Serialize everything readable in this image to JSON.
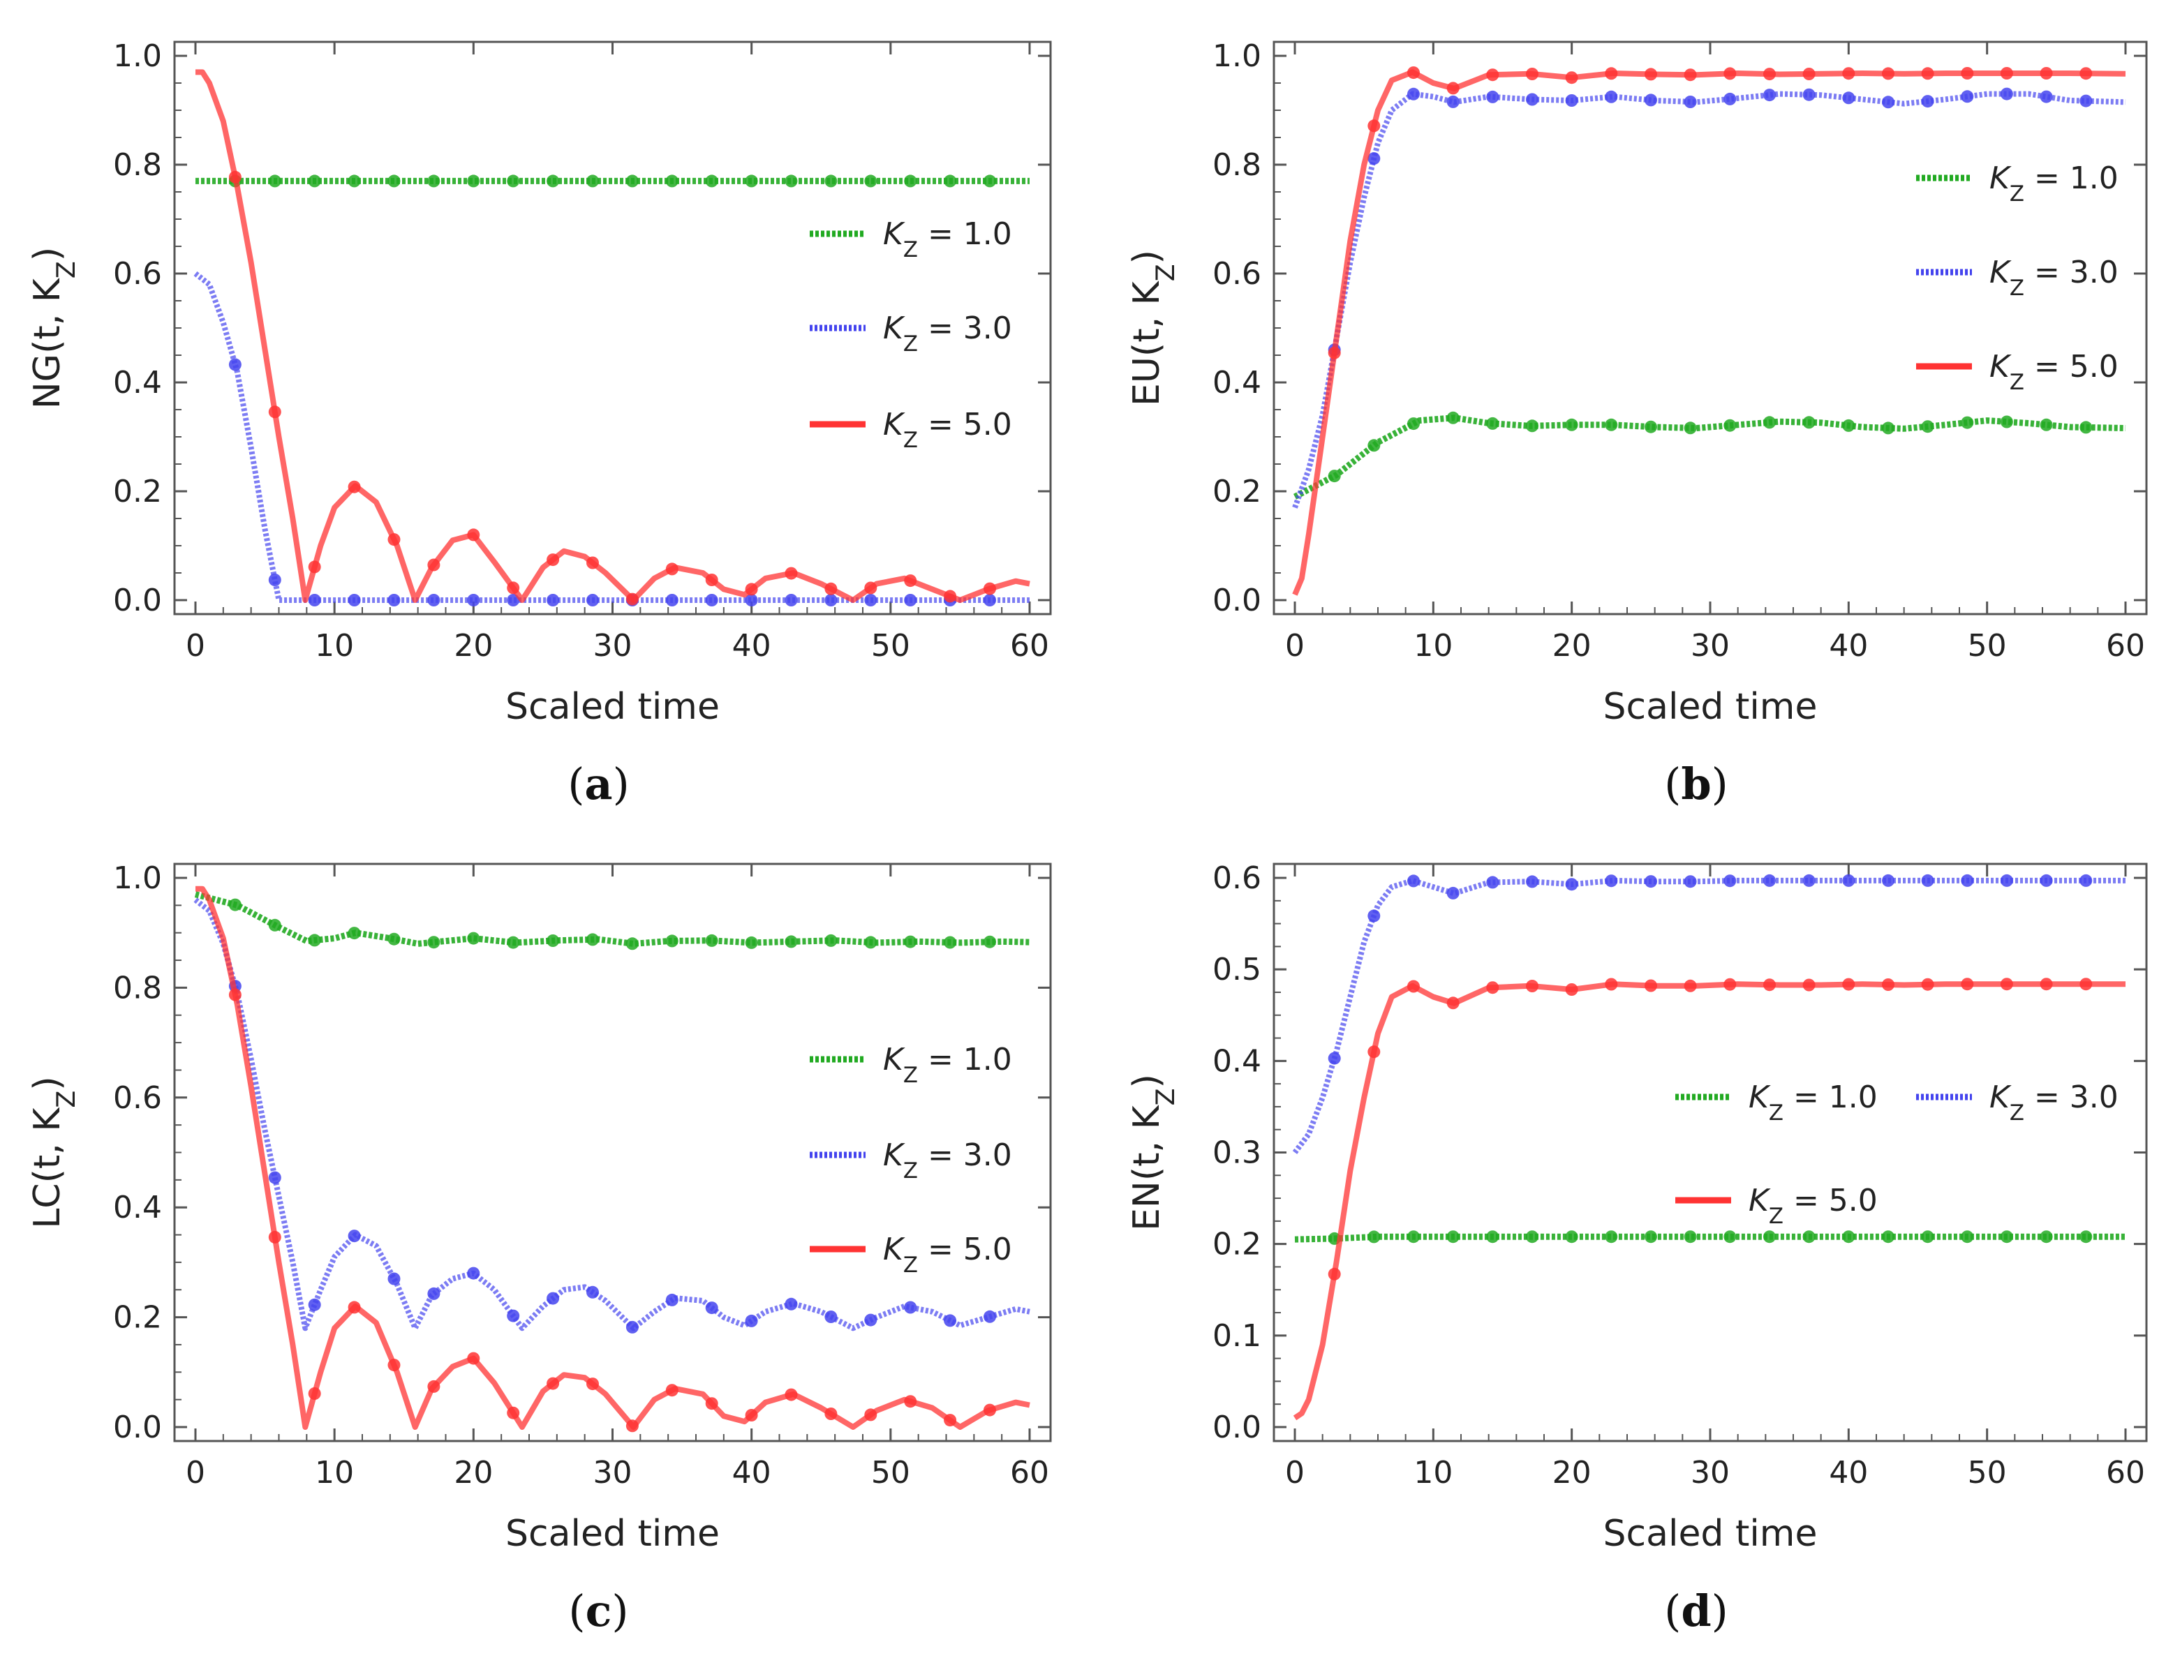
{
  "figure": {
    "xlabel": "Scaled time",
    "colors": {
      "kz1": "#22aa22",
      "kz3": "#4444ee",
      "kz5": "#ff3333",
      "frame": "#555555"
    }
  },
  "chart_data": [
    {
      "id": "a",
      "type": "line",
      "caption": "(a)",
      "xlabel": "Scaled time",
      "ylabel": "NG(t, K_Z)",
      "xlim": [
        0,
        60
      ],
      "ylim": [
        0,
        1.0
      ],
      "xticks": [
        "0",
        "10",
        "20",
        "30",
        "40",
        "50",
        "60"
      ],
      "yticks": [
        "0.0",
        "0.2",
        "0.4",
        "0.6",
        "0.8",
        "1.0"
      ],
      "legend_position": "right",
      "series": [
        {
          "name": "K_Z = 1.0",
          "key": "kz1",
          "x": [
            0,
            60
          ],
          "y": [
            0.77,
            0.77
          ]
        },
        {
          "name": "K_Z = 3.0",
          "key": "kz3",
          "x": [
            0,
            1,
            2,
            3,
            4,
            5,
            6,
            8,
            10,
            20,
            30,
            40,
            50,
            60
          ],
          "y": [
            0.6,
            0.58,
            0.51,
            0.42,
            0.28,
            0.13,
            0.0,
            0.0,
            0.0,
            0.0,
            0.0,
            0.0,
            0.0,
            0.0
          ]
        },
        {
          "name": "K_Z = 5.0",
          "key": "kz5",
          "x": [
            0,
            0.5,
            1,
            2,
            3,
            4,
            5,
            6,
            7,
            7.9,
            9,
            10,
            11.5,
            13,
            14.5,
            15.8,
            17,
            18.5,
            20,
            21.5,
            23.5,
            25,
            26.5,
            28,
            29.5,
            31.5,
            33,
            34.5,
            36.5,
            38,
            39.5,
            41,
            43,
            45,
            47.3,
            49,
            51,
            53,
            55,
            57,
            59,
            60
          ],
          "y": [
            0.97,
            0.97,
            0.95,
            0.88,
            0.76,
            0.62,
            0.46,
            0.3,
            0.15,
            0.0,
            0.1,
            0.17,
            0.21,
            0.18,
            0.1,
            0.0,
            0.06,
            0.11,
            0.12,
            0.07,
            0.0,
            0.06,
            0.09,
            0.08,
            0.05,
            0.0,
            0.04,
            0.06,
            0.05,
            0.02,
            0.01,
            0.04,
            0.05,
            0.03,
            0.0,
            0.03,
            0.04,
            0.02,
            0.0,
            0.02,
            0.035,
            0.03
          ]
        }
      ]
    },
    {
      "id": "b",
      "type": "line",
      "caption": "(b)",
      "xlabel": "Scaled time",
      "ylabel": "EU(t, K_Z)",
      "xlim": [
        0,
        60
      ],
      "ylim": [
        0,
        1.0
      ],
      "xticks": [
        "0",
        "10",
        "20",
        "30",
        "40",
        "50",
        "60"
      ],
      "yticks": [
        "0.0",
        "0.2",
        "0.4",
        "0.6",
        "0.8",
        "1.0"
      ],
      "legend_position": "right",
      "series": [
        {
          "name": "K_Z = 1.0",
          "key": "kz1",
          "x": [
            0,
            3,
            6,
            9,
            11.5,
            14,
            17,
            20,
            23,
            26,
            29,
            32,
            35,
            38,
            41,
            44,
            47,
            50,
            53,
            56,
            60
          ],
          "y": [
            0.19,
            0.23,
            0.29,
            0.33,
            0.335,
            0.325,
            0.32,
            0.322,
            0.322,
            0.318,
            0.316,
            0.322,
            0.328,
            0.326,
            0.318,
            0.315,
            0.322,
            0.33,
            0.325,
            0.318,
            0.316
          ]
        },
        {
          "name": "K_Z = 3.0",
          "key": "kz3",
          "x": [
            0,
            1,
            2,
            3,
            4,
            5,
            6,
            7,
            8.5,
            10,
            11.5,
            14,
            17,
            20,
            23,
            26,
            29,
            32,
            35,
            38,
            41,
            44,
            47,
            50,
            53,
            56,
            60
          ],
          "y": [
            0.17,
            0.24,
            0.34,
            0.48,
            0.62,
            0.74,
            0.84,
            0.9,
            0.93,
            0.925,
            0.915,
            0.925,
            0.92,
            0.918,
            0.925,
            0.918,
            0.915,
            0.922,
            0.93,
            0.928,
            0.92,
            0.912,
            0.92,
            0.93,
            0.93,
            0.918,
            0.915
          ]
        },
        {
          "name": "K_Z = 5.0",
          "key": "kz5",
          "x": [
            0,
            0.5,
            1,
            2,
            3,
            4,
            5,
            6,
            7,
            8.5,
            10,
            11.5,
            14,
            17,
            20,
            23,
            26,
            29,
            32,
            35,
            38,
            41,
            44,
            47,
            50,
            53,
            56,
            60
          ],
          "y": [
            0.01,
            0.04,
            0.12,
            0.3,
            0.48,
            0.66,
            0.8,
            0.9,
            0.955,
            0.97,
            0.95,
            0.94,
            0.965,
            0.967,
            0.96,
            0.968,
            0.966,
            0.965,
            0.968,
            0.966,
            0.967,
            0.968,
            0.967,
            0.968,
            0.968,
            0.968,
            0.968,
            0.967
          ]
        }
      ]
    },
    {
      "id": "c",
      "type": "line",
      "caption": "(c)",
      "xlabel": "Scaled time",
      "ylabel": "LC(t, K_Z)",
      "xlim": [
        0,
        60
      ],
      "ylim": [
        0,
        1.0
      ],
      "xticks": [
        "0",
        "10",
        "20",
        "30",
        "40",
        "50",
        "60"
      ],
      "yticks": [
        "0.0",
        "0.2",
        "0.4",
        "0.6",
        "0.8",
        "1.0"
      ],
      "legend_position": "right",
      "series": [
        {
          "name": "K_Z = 1.0",
          "key": "kz1",
          "x": [
            0,
            3,
            6,
            8,
            10,
            11.5,
            14,
            16,
            18,
            20,
            23,
            26,
            29,
            31.5,
            34,
            37,
            40,
            43,
            46,
            49,
            52,
            55,
            58,
            60
          ],
          "y": [
            0.97,
            0.95,
            0.91,
            0.885,
            0.89,
            0.9,
            0.89,
            0.88,
            0.885,
            0.89,
            0.882,
            0.886,
            0.888,
            0.88,
            0.885,
            0.886,
            0.882,
            0.884,
            0.886,
            0.882,
            0.884,
            0.882,
            0.884,
            0.883
          ]
        },
        {
          "name": "K_Z = 3.0",
          "key": "kz3",
          "x": [
            0,
            1,
            2,
            3,
            4,
            5,
            6,
            7,
            7.9,
            9,
            10,
            11.5,
            13,
            14.5,
            15.8,
            17,
            18.5,
            20,
            21.5,
            23.5,
            25,
            26.5,
            28,
            29.5,
            31.5,
            33,
            34.5,
            36.5,
            38,
            39.5,
            41,
            43,
            45,
            47.3,
            49,
            51,
            53,
            55,
            57,
            59,
            60
          ],
          "y": [
            0.96,
            0.94,
            0.88,
            0.79,
            0.67,
            0.54,
            0.42,
            0.3,
            0.18,
            0.25,
            0.31,
            0.35,
            0.33,
            0.26,
            0.18,
            0.24,
            0.27,
            0.28,
            0.25,
            0.18,
            0.22,
            0.25,
            0.255,
            0.23,
            0.18,
            0.21,
            0.235,
            0.23,
            0.2,
            0.185,
            0.21,
            0.225,
            0.21,
            0.18,
            0.2,
            0.22,
            0.21,
            0.185,
            0.2,
            0.215,
            0.21
          ]
        },
        {
          "name": "K_Z = 5.0",
          "key": "kz5",
          "x": [
            0,
            0.5,
            1,
            2,
            3,
            4,
            5,
            6,
            7,
            7.9,
            9,
            10,
            11.5,
            13,
            14.5,
            15.8,
            17,
            18.5,
            20,
            21.5,
            23.5,
            25,
            26.5,
            28,
            29.5,
            31.5,
            33,
            34.5,
            36.5,
            38,
            39.5,
            41,
            43,
            45,
            47.3,
            49,
            51,
            53,
            55,
            57,
            59,
            60
          ],
          "y": [
            0.98,
            0.98,
            0.96,
            0.89,
            0.77,
            0.62,
            0.46,
            0.3,
            0.15,
            0.0,
            0.1,
            0.18,
            0.22,
            0.19,
            0.1,
            0.0,
            0.07,
            0.11,
            0.125,
            0.08,
            0.0,
            0.065,
            0.095,
            0.09,
            0.06,
            0.0,
            0.05,
            0.07,
            0.06,
            0.02,
            0.01,
            0.045,
            0.06,
            0.035,
            0.0,
            0.03,
            0.05,
            0.035,
            0.0,
            0.03,
            0.045,
            0.04
          ]
        }
      ]
    },
    {
      "id": "d",
      "type": "line",
      "caption": "(d)",
      "xlabel": "Scaled time",
      "ylabel": "EN(t, K_Z)",
      "xlim": [
        0,
        60
      ],
      "ylim": [
        0,
        0.6
      ],
      "xticks": [
        "0",
        "10",
        "20",
        "30",
        "40",
        "50",
        "60"
      ],
      "yticks": [
        "0.0",
        "0.1",
        "0.2",
        "0.3",
        "0.4",
        "0.5",
        "0.6"
      ],
      "legend_position": "center-right",
      "series": [
        {
          "name": "K_Z = 1.0",
          "key": "kz1",
          "x": [
            0,
            3,
            6,
            10,
            20,
            30,
            40,
            50,
            60
          ],
          "y": [
            0.205,
            0.206,
            0.208,
            0.208,
            0.208,
            0.208,
            0.208,
            0.208,
            0.208
          ]
        },
        {
          "name": "K_Z = 3.0",
          "key": "kz3",
          "x": [
            0,
            1,
            2,
            3,
            4,
            5,
            6,
            7,
            8.5,
            10,
            11.5,
            14,
            17,
            20,
            23,
            26,
            29,
            32,
            35,
            38,
            41,
            44,
            47,
            50,
            53,
            56,
            60
          ],
          "y": [
            0.3,
            0.32,
            0.36,
            0.41,
            0.47,
            0.53,
            0.57,
            0.59,
            0.597,
            0.59,
            0.583,
            0.595,
            0.596,
            0.593,
            0.597,
            0.596,
            0.596,
            0.597,
            0.597,
            0.597,
            0.597,
            0.597,
            0.597,
            0.597,
            0.597,
            0.597,
            0.597
          ]
        },
        {
          "name": "K_Z = 5.0",
          "key": "kz5",
          "x": [
            0,
            0.5,
            1,
            2,
            3,
            4,
            5,
            6,
            7,
            8.5,
            10,
            11.5,
            14,
            17,
            20,
            23,
            26,
            29,
            32,
            35,
            38,
            41,
            44,
            47,
            50,
            53,
            56,
            60
          ],
          "y": [
            0.01,
            0.015,
            0.03,
            0.09,
            0.18,
            0.28,
            0.36,
            0.43,
            0.47,
            0.482,
            0.47,
            0.463,
            0.48,
            0.482,
            0.478,
            0.484,
            0.482,
            0.482,
            0.484,
            0.483,
            0.483,
            0.484,
            0.483,
            0.484,
            0.484,
            0.484,
            0.484,
            0.484
          ]
        }
      ]
    }
  ]
}
